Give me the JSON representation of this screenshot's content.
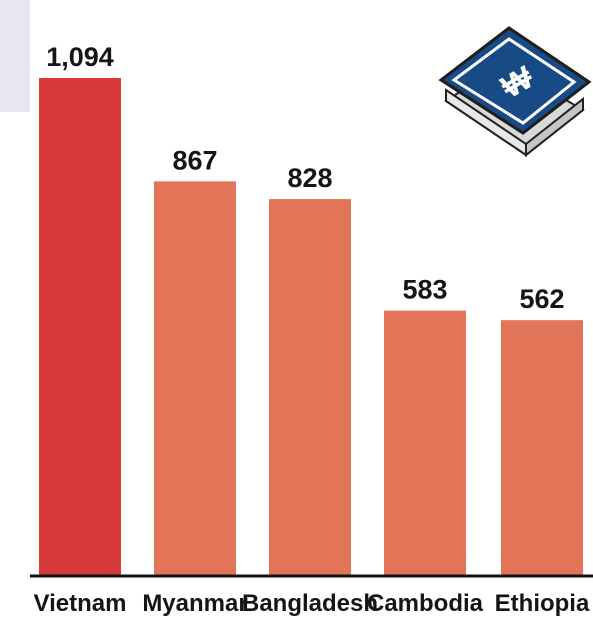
{
  "chart_data": {
    "type": "bar",
    "categories": [
      "Vietnam",
      "Myanmar",
      "Bangladesh",
      "Cambodia",
      "Ethiopia"
    ],
    "values": [
      1094,
      867,
      828,
      583,
      562
    ],
    "value_labels": [
      "1,094",
      "867",
      "828",
      "583",
      "562"
    ],
    "ylim": [
      0,
      1094
    ],
    "grid": false,
    "colors": {
      "highlight": "#d8393a",
      "default": "#e27558",
      "axis": "#111111",
      "text": "#151515"
    }
  },
  "decorations": {
    "money_icon_symbol": "₩",
    "money_icon_colors": {
      "note": "#184b86",
      "border": "#ffffff",
      "stack": "#d9d9d9"
    }
  }
}
